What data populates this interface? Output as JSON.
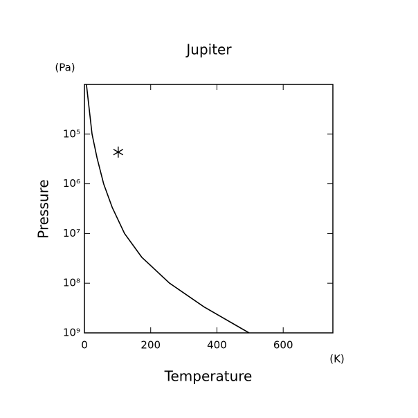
{
  "chart_data": {
    "type": "line",
    "title": "Jupiter",
    "x_label": "Temperature",
    "y_label": "Pressure",
    "x_unit": "(K)",
    "y_unit": "(Pa)",
    "x": [
      6,
      23,
      38,
      58,
      84,
      121,
      173,
      257,
      361,
      497
    ],
    "values": [
      10000,
      100000,
      300000,
      1000000,
      3000000,
      10000000,
      30000000,
      100000000,
      300000000,
      1000000000
    ],
    "color": "#000000",
    "markers": {
      "x": [
        102
      ],
      "values": [
        230000
      ]
    },
    "xlim": [
      0,
      750
    ],
    "xticks": [
      0,
      200,
      400,
      600
    ],
    "ylim": [
      10000,
      1000000000
    ],
    "y_scale": "log",
    "y_inverted": true,
    "yticks": [
      {
        "value": 100000,
        "label": "10⁵"
      },
      {
        "value": 1000000,
        "label": "10⁶"
      },
      {
        "value": 10000000,
        "label": "10⁷"
      },
      {
        "value": 100000000,
        "label": "10⁸"
      },
      {
        "value": 1000000000,
        "label": "10⁹"
      }
    ]
  }
}
